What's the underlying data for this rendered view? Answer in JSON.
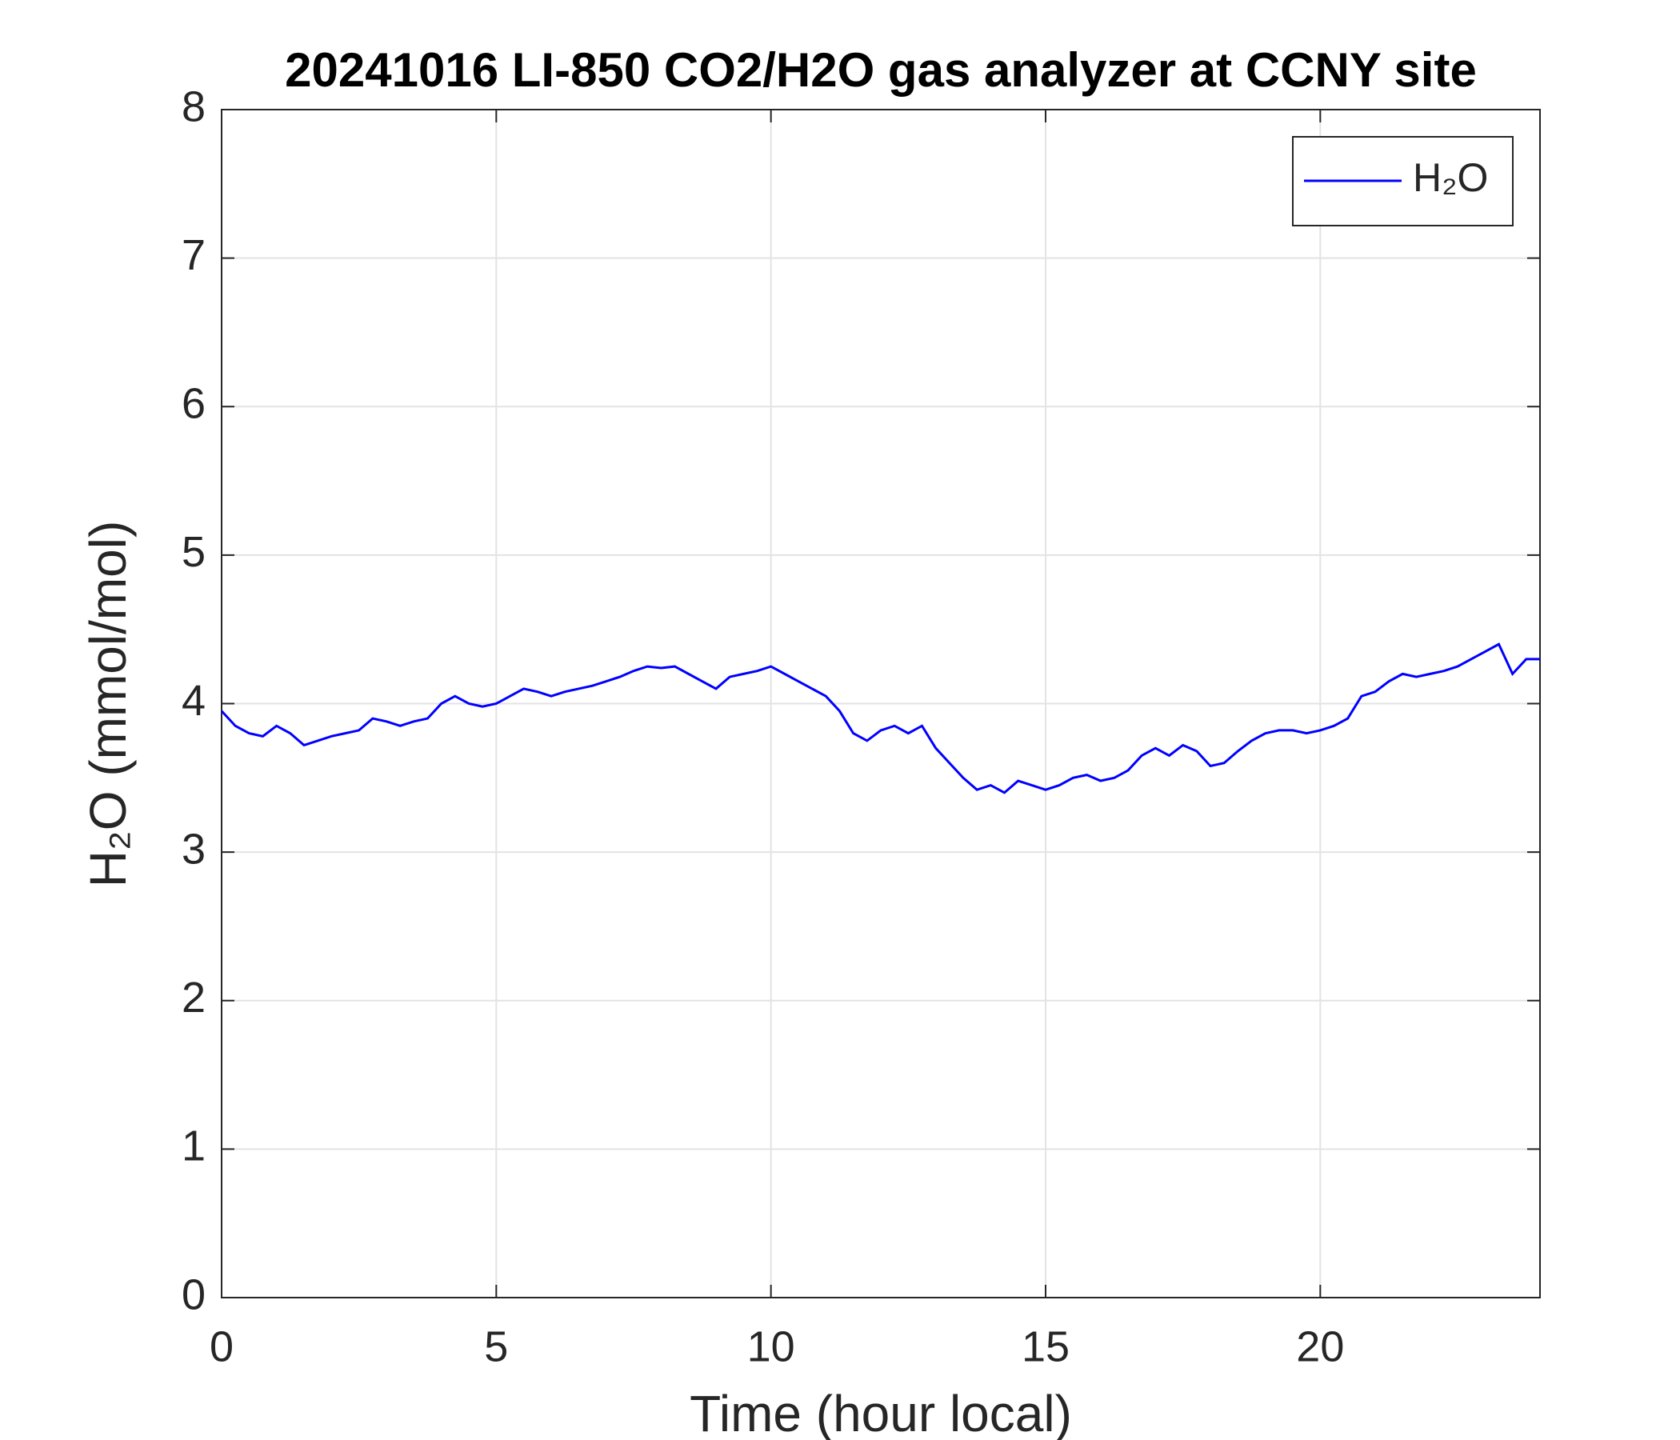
{
  "chart_data": {
    "type": "line",
    "title": "20241016 LI-850 CO2/H2O gas analyzer at CCNY site",
    "x_label": "Time (hour local)",
    "y_label": "H₂O (mmol/mol)",
    "x": [
      0,
      0.25,
      0.5,
      0.75,
      1,
      1.25,
      1.5,
      1.75,
      2,
      2.25,
      2.5,
      2.75,
      3,
      3.25,
      3.5,
      3.75,
      4,
      4.25,
      4.5,
      4.75,
      5,
      5.25,
      5.5,
      5.75,
      6,
      6.25,
      6.5,
      6.75,
      7,
      7.25,
      7.5,
      7.75,
      8,
      8.25,
      8.5,
      8.75,
      9,
      9.25,
      9.5,
      9.75,
      10,
      10.25,
      10.5,
      10.75,
      11,
      11.25,
      11.5,
      11.75,
      12,
      12.25,
      12.5,
      12.75,
      13,
      13.25,
      13.5,
      13.75,
      14,
      14.25,
      14.5,
      14.75,
      15,
      15.25,
      15.5,
      15.75,
      16,
      16.25,
      16.5,
      16.75,
      17,
      17.25,
      17.5,
      17.75,
      18,
      18.25,
      18.5,
      18.75,
      19,
      19.25,
      19.5,
      19.75,
      20,
      20.25,
      20.5,
      20.75,
      21,
      21.25,
      21.5,
      21.75,
      22,
      22.25,
      22.5,
      22.75,
      23,
      23.25,
      23.5,
      23.75,
      24
    ],
    "series": [
      {
        "name": "H₂O",
        "color": "#0000ff",
        "values": [
          3.95,
          3.85,
          3.8,
          3.78,
          3.85,
          3.8,
          3.72,
          3.75,
          3.78,
          3.8,
          3.82,
          3.9,
          3.88,
          3.85,
          3.88,
          3.9,
          4.0,
          4.05,
          4.0,
          3.98,
          4.0,
          4.05,
          4.1,
          4.08,
          4.05,
          4.08,
          4.1,
          4.12,
          4.15,
          4.18,
          4.22,
          4.25,
          4.24,
          4.25,
          4.2,
          4.15,
          4.1,
          4.18,
          4.2,
          4.22,
          4.25,
          4.2,
          4.15,
          4.1,
          4.05,
          3.95,
          3.8,
          3.75,
          3.82,
          3.85,
          3.8,
          3.85,
          3.7,
          3.6,
          3.5,
          3.42,
          3.45,
          3.4,
          3.48,
          3.45,
          3.42,
          3.45,
          3.5,
          3.52,
          3.48,
          3.5,
          3.55,
          3.65,
          3.7,
          3.65,
          3.72,
          3.68,
          3.58,
          3.6,
          3.68,
          3.75,
          3.8,
          3.82,
          3.82,
          3.8,
          3.82,
          3.85,
          3.9,
          4.05,
          4.08,
          4.15,
          4.2,
          4.18,
          4.2,
          4.22,
          4.25,
          4.3,
          4.35,
          4.4,
          4.2,
          4.3,
          4.3
        ]
      }
    ],
    "xlim": [
      0,
      24
    ],
    "xticks": [
      0,
      5,
      10,
      15,
      20
    ],
    "ylim": [
      0,
      8
    ],
    "yticks": [
      0,
      1,
      2,
      3,
      4,
      5,
      6,
      7,
      8
    ],
    "grid": true,
    "legend_position": "upper right"
  }
}
